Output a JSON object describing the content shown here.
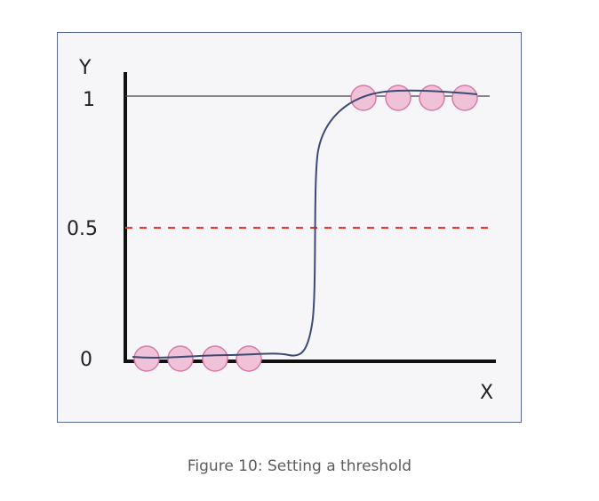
{
  "figure": {
    "y_axis_label": "Y",
    "x_axis_label": "X",
    "tick_labels": {
      "top": "1",
      "middle": "0.5",
      "bottom": "0"
    },
    "caption": "Figure 10: Setting a threshold",
    "colors": {
      "curve": "#3d4a76",
      "threshold": "#e8402c",
      "point_fill": "#f0c2d8",
      "point_stroke": "#d77aa6",
      "axis": "#111111",
      "frame": "#5a6690",
      "background": "#f6f6f8"
    }
  },
  "diagram": {
    "threshold_value": 0.5,
    "upper_level": 1,
    "lower_level": 0,
    "point_count_at_0": 4,
    "point_count_at_1": 4
  }
}
